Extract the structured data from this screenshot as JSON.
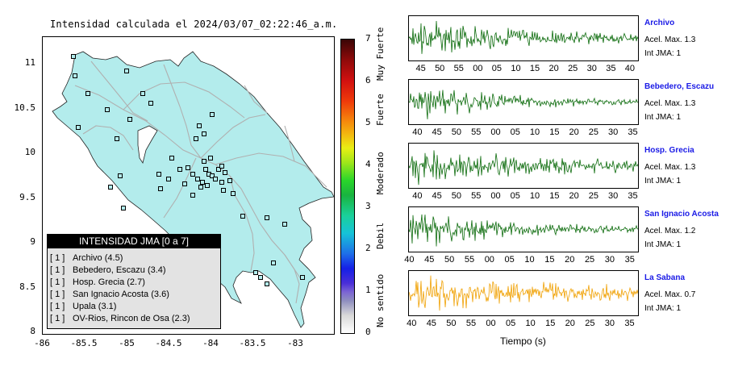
{
  "title": "Intensidad calculada el 2024/03/07_02:22:46_a.m.",
  "map": {
    "lat_ticks": [
      "11",
      "10.5",
      "10",
      "9.5",
      "9",
      "8.5",
      "8"
    ],
    "lon_ticks": [
      "-86",
      "-85.5",
      "-85",
      "-84.5",
      "-84",
      "-83.5",
      "-83"
    ],
    "land_color": "#b3ecec",
    "road_color": "#b0b0b0",
    "station_marker_color": "#000000"
  },
  "legend": {
    "header": "INTENSIDAD JMA [0 a 7]",
    "items": [
      {
        "level": "[ 1 ]",
        "text": "Archivo (4.5)"
      },
      {
        "level": "[ 1 ]",
        "text": "Bebedero, Escazu (3.4)"
      },
      {
        "level": "[ 1 ]",
        "text": "Hosp. Grecia (2.7)"
      },
      {
        "level": "[ 1 ]",
        "text": "San Ignacio Acosta (3.6)"
      },
      {
        "level": "[ 1 ]",
        "text": "Upala (3.1)"
      },
      {
        "level": "[ 1 ]",
        "text": "OV-Rios, Rincon de Osa (2.3)"
      }
    ]
  },
  "colorbar": {
    "ticks": [
      "7",
      "6",
      "5",
      "4",
      "3",
      "2",
      "1",
      "0"
    ],
    "words": [
      {
        "text": "Muy Fuerte",
        "from": 6,
        "to": 7
      },
      {
        "text": "Fuerte",
        "from": 4.8,
        "to": 5.8
      },
      {
        "text": "Moderado",
        "from": 3,
        "to": 4.6
      },
      {
        "text": "Debil",
        "from": 1.8,
        "to": 2.8
      },
      {
        "text": "No sentido",
        "from": 0,
        "to": 1.5
      }
    ]
  },
  "waveforms": {
    "x_label": "Tiempo (s)",
    "stations": [
      {
        "name": "Archivo",
        "accel": "Acel. Max. 1.3",
        "jma": "Int JMA: 1",
        "color": "#0a6a0a",
        "ticks": [
          "45",
          "50",
          "55",
          "00",
          "05",
          "10",
          "15",
          "20",
          "25",
          "30",
          "35",
          "40"
        ],
        "first_tick_frac": 0.055,
        "step_frac": 0.083,
        "seed": 3,
        "decay": 0.006,
        "onset": 4
      },
      {
        "name": "Bebedero, Escazu",
        "accel": "Acel. Max. 1.3",
        "jma": "Int JMA: 1",
        "color": "#0a6a0a",
        "ticks": [
          "40",
          "45",
          "50",
          "55",
          "00",
          "05",
          "10",
          "15",
          "20",
          "25",
          "30",
          "35"
        ],
        "first_tick_frac": 0.04,
        "step_frac": 0.0855,
        "seed": 7,
        "decay": 0.009,
        "onset": 2
      },
      {
        "name": "Hosp. Grecia",
        "accel": "Acel. Max. 1.3",
        "jma": "Int JMA: 1",
        "color": "#0a6a0a",
        "ticks": [
          "40",
          "45",
          "50",
          "55",
          "00",
          "05",
          "10",
          "15",
          "20",
          "25",
          "30",
          "35"
        ],
        "first_tick_frac": 0.04,
        "step_frac": 0.0855,
        "seed": 11,
        "decay": 0.005,
        "onset": 3
      },
      {
        "name": "San Ignacio Acosta",
        "accel": "Acel. Max. 1.2",
        "jma": "Int JMA: 1",
        "color": "#0a6a0a",
        "ticks": [
          "40",
          "45",
          "50",
          "55",
          "00",
          "05",
          "10",
          "15",
          "20",
          "25",
          "30",
          "35"
        ],
        "first_tick_frac": 0.005,
        "step_frac": 0.0875,
        "seed": 17,
        "decay": 0.008,
        "onset": 2
      },
      {
        "name": "La Sabana",
        "accel": "Acel. Max. 0.7",
        "jma": "Int JMA: 1",
        "color": "#f0a000",
        "ticks": [
          "40",
          "45",
          "50",
          "55",
          "00",
          "05",
          "10",
          "15",
          "20",
          "25",
          "30",
          "35"
        ],
        "first_tick_frac": 0.015,
        "step_frac": 0.0865,
        "seed": 23,
        "decay": 0.004,
        "onset": 2
      }
    ]
  }
}
